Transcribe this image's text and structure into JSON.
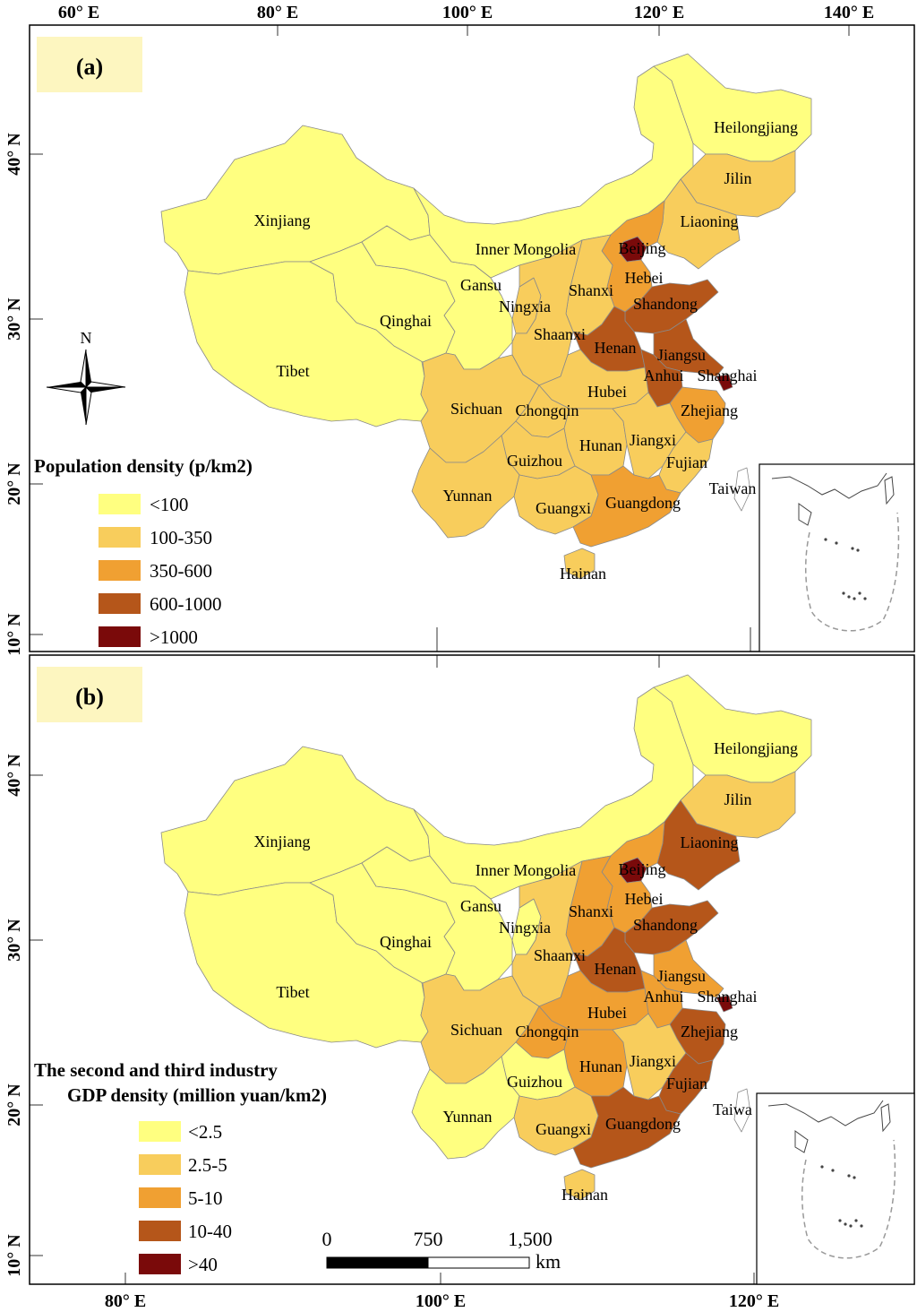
{
  "panels": [
    {
      "id": "a",
      "tag": "(a)",
      "top_axis_labels": [
        "60° E",
        "80° E",
        "100° E",
        "120° E",
        "140° E"
      ],
      "lat_labels": [
        "40° N",
        "30° N",
        "20° N",
        "10° N"
      ],
      "legend_title_lines": [
        "Population density (p/km2)"
      ],
      "legend_classes": [
        {
          "label": "<100",
          "color": "#ffff80"
        },
        {
          "label": "100-350",
          "color": "#f8cd5c"
        },
        {
          "label": "350-600",
          "color": "#f0a032"
        },
        {
          "label": "600-1000",
          "color": "#b5561a"
        },
        {
          "label": ">1000",
          "color": "#7a0a0a"
        }
      ],
      "provinces": {
        "Xinjiang": 0,
        "Tibet": 0,
        "Qinghai": 0,
        "Inner Mongolia": 0,
        "Gansu": 0,
        "Heilongjiang": 0,
        "Ningxia": 1,
        "Yunnan": 1,
        "Sichuan": 1,
        "Chongqin": 1,
        "Guizhou": 1,
        "Guangxi": 1,
        "Hunan": 1,
        "Jiangxi": 1,
        "Fujian": 1,
        "Hubei": 1,
        "Shaanxi": 1,
        "Shanxi": 1,
        "Jilin": 1,
        "Liaoning": 1,
        "Hainan": 1,
        "Hebei": 2,
        "Zhejiang": 2,
        "Guangdong": 2,
        "Henan": 3,
        "Shandong": 3,
        "Jiangsu": 3,
        "Anhui": 3,
        "Beijing": 4,
        "Shanghai": 4,
        "Taiwan": -1
      },
      "province_labels": [
        "Xinjiang",
        "Tibet",
        "Qinghai",
        "Inner Mongolia",
        "Gansu",
        "Ningxia",
        "Heilongjiang",
        "Jilin",
        "Liaoning",
        "Beijing",
        "Hebei",
        "Shanxi",
        "Shandong",
        "Shaanxi",
        "Henan",
        "Jiangsu",
        "Anhui",
        "Shanghai",
        "Hubei",
        "Sichuan",
        "Chongqin",
        "Zhejiang",
        "Hunan",
        "Jiangxi",
        "Guizhou",
        "Fujian",
        "Yunnan",
        "Guangxi",
        "Guangdong",
        "Taiwan",
        "Hainan"
      ],
      "north_arrow": "N"
    },
    {
      "id": "b",
      "tag": "(b)",
      "bottom_axis_labels": [
        "80° E",
        "100° E",
        "120° E"
      ],
      "lat_labels": [
        "40° N",
        "30° N",
        "20° N",
        "10° N"
      ],
      "legend_title_lines": [
        "The second and third  industry",
        "GDP density (million yuan/km2)"
      ],
      "legend_classes": [
        {
          "label": "<2.5",
          "color": "#ffff80"
        },
        {
          "label": "2.5-5",
          "color": "#f8cd5c"
        },
        {
          "label": "5-10",
          "color": "#f0a032"
        },
        {
          "label": "10-40",
          "color": "#b5561a"
        },
        {
          "label": ">40",
          "color": "#7a0a0a"
        }
      ],
      "provinces": {
        "Xinjiang": 0,
        "Tibet": 0,
        "Qinghai": 0,
        "Inner Mongolia": 0,
        "Gansu": 0,
        "Heilongjiang": 0,
        "Ningxia": 0,
        "Yunnan": 0,
        "Guizhou": 0,
        "Hainan": 1,
        "Sichuan": 1,
        "Shaanxi": 1,
        "Jilin": 1,
        "Guangxi": 1,
        "Jiangxi": 1,
        "Chongqin": 2,
        "Hubei": 2,
        "Hunan": 2,
        "Shanxi": 2,
        "Hebei": 2,
        "Anhui": 2,
        "Jiangsu": 2,
        "Henan": 3,
        "Shandong": 3,
        "Liaoning": 3,
        "Zhejiang": 3,
        "Fujian": 3,
        "Guangdong": 3,
        "Beijing": 4,
        "Shanghai": 4,
        "Taiwan": -1
      },
      "province_labels": [
        "Xinjiang",
        "Tibet",
        "Qinghai",
        "Inner Mongolia",
        "Gansu",
        "Ningxia",
        "Heilongjiang",
        "Jilin",
        "Liaoning",
        "Beijing",
        "Hebei",
        "Shanxi",
        "Shandong",
        "Shaanxi",
        "Henan",
        "Jiangsu",
        "Anhui",
        "Shanghai",
        "Hubei",
        "Sichuan",
        "Chongqin",
        "Zhejiang",
        "Hunan",
        "Jiangxi",
        "Guizhou",
        "Fujian",
        "Yunnan",
        "Guangxi",
        "Guangdong",
        "Taiwa",
        "Hainan"
      ],
      "scale_bar": {
        "ticks": [
          "0",
          "750",
          "1,500"
        ],
        "unit": "km"
      }
    }
  ]
}
